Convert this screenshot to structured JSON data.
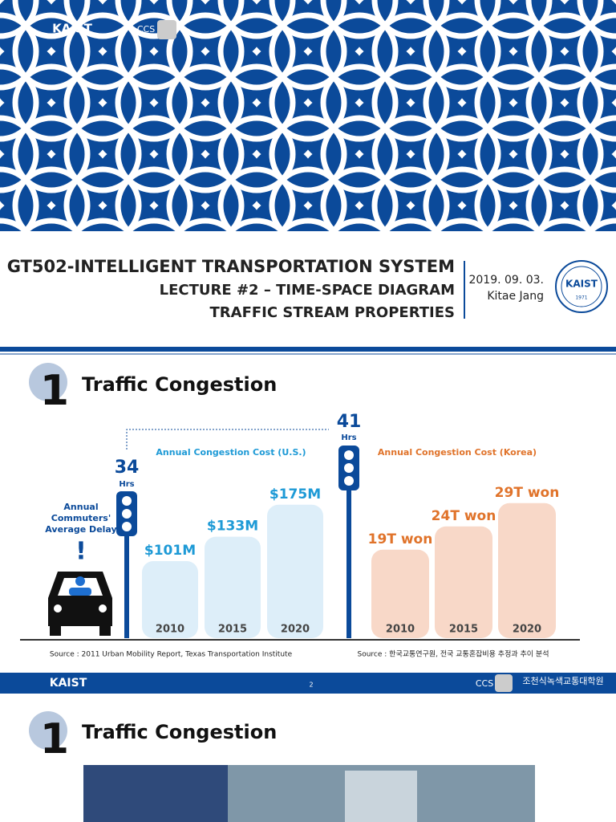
{
  "cover": {
    "logos": [
      "KAIST",
      "CCS"
    ],
    "title": "GT502-INTELLIGENT TRANSPORTATION SYSTEM",
    "subtitle_1": "LECTURE #2 – TIME-SPACE DIAGRAM",
    "subtitle_2": "TRAFFIC STREAM PROPERTIES",
    "date": "2019. 09. 03.",
    "author": "Kitae Jang",
    "seal": {
      "name": "KAIST",
      "year": "1971"
    }
  },
  "slide_2": {
    "number": "1",
    "title": "Traffic Congestion",
    "delay_label": [
      "Annual",
      "Commuters'",
      "Average Delay"
    ],
    "us_delay": {
      "value": "34",
      "unit": "Hrs"
    },
    "korea_delay": {
      "value": "41",
      "unit": "Hrs"
    },
    "us_chart": {
      "title": "Annual Congestion Cost (U.S.)",
      "categories": [
        "2010",
        "2015",
        "2020"
      ],
      "values": [
        101,
        133,
        175
      ],
      "value_labels": [
        "$101M",
        "$133M",
        "$175M"
      ],
      "source": "Source : 2011 Urban Mobility Report, Texas Transportation Institute"
    },
    "korea_chart": {
      "title": "Annual Congestion Cost (Korea)",
      "categories": [
        "2010",
        "2015",
        "2020"
      ],
      "values": [
        19,
        24,
        29
      ],
      "value_labels": [
        "19T won",
        "24T won",
        "29T won"
      ],
      "source": "Source : 한국교통연구원, 전국 교통혼잡비용 추정과 추이 분석"
    },
    "footer": {
      "left": "KAIST",
      "page": "2",
      "right": "CCS",
      "school": "조천식녹색교통대학원"
    }
  },
  "slide_3": {
    "number": "1",
    "title": "Traffic Congestion"
  }
}
